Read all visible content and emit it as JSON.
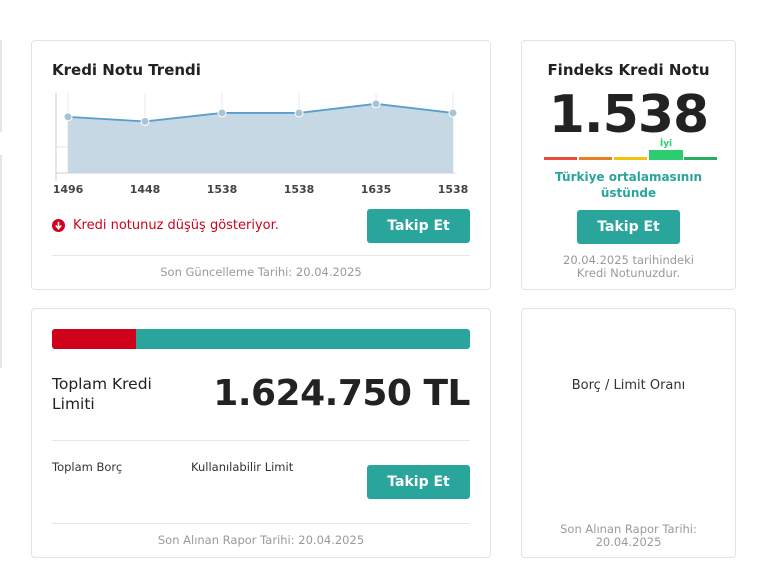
{
  "trend": {
    "title": "Kredi Notu Trendi",
    "decline_message": "Kredi notunuz düşüş gösteriyor.",
    "follow_label": "Takip Et",
    "updated": "Son Güncelleme Tarihi: 20.04.2025",
    "chart_data": {
      "type": "area",
      "x": [
        "1496",
        "1448",
        "1538",
        "1538",
        "1635",
        "1538"
      ],
      "values": [
        1496,
        1448,
        1538,
        1538,
        1635,
        1538
      ],
      "ylim": [
        900,
        1750
      ],
      "grid": true,
      "colors": {
        "line": "#5a9fcc",
        "fill": "#c5d8e3",
        "point": "#a8c4d4"
      }
    }
  },
  "findeks": {
    "title": "Findeks Kredi Notu",
    "score": "1.538",
    "level_label": "İyi",
    "level_index": 3,
    "level_colors": [
      "#e74c3c",
      "#e67e22",
      "#f1c40f",
      "#2ecc71",
      "#27ae60"
    ],
    "comparison": "Türkiye ortalamasının üstünde",
    "follow_label": "Takip Et",
    "note": "20.04.2025 tarihindeki Kredi Notunuzdur."
  },
  "limit": {
    "used_fraction": 0.2,
    "total_label": "Toplam Kredi Limiti",
    "total_value": "1.624.750 TL",
    "debt_label": "Toplam Borç",
    "available_label": "Kullanılabilir Limit",
    "follow_label": "Takip Et",
    "report_date": "Son Alınan Rapor Tarihi: 20.04.2025"
  },
  "ratio": {
    "title": "Borç / Limit Oranı",
    "report_date": "Son Alınan Rapor Tarihi: 20.04.2025"
  },
  "colors": {
    "accent": "#2aa59c",
    "danger": "#d0021b"
  }
}
